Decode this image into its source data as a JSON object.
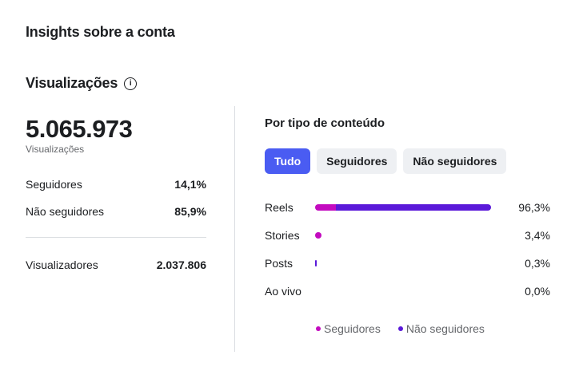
{
  "header": {
    "title": "Insights sobre a conta"
  },
  "section": {
    "title": "Visualizações",
    "info_icon": "info-icon"
  },
  "summary": {
    "total": "5.065.973",
    "total_label": "Visualizações",
    "rows": [
      {
        "label": "Seguidores",
        "value": "14,1%"
      },
      {
        "label": "Não seguidores",
        "value": "85,9%"
      }
    ],
    "viewers": {
      "label": "Visualizadores",
      "value": "2.037.806"
    }
  },
  "content": {
    "title": "Por tipo de conteúdo",
    "tabs": [
      {
        "label": "Tudo",
        "active": true
      },
      {
        "label": "Seguidores",
        "active": false
      },
      {
        "label": "Não seguidores",
        "active": false
      }
    ],
    "rows": [
      {
        "label": "Reels",
        "pct": "96,3%",
        "total": 96.3,
        "followers_share": 12
      },
      {
        "label": "Stories",
        "pct": "3,4%",
        "total": 3.4,
        "followers_share": 100
      },
      {
        "label": "Posts",
        "pct": "0,3%",
        "total": 0.3,
        "followers_share": 0
      },
      {
        "label": "Ao vivo",
        "pct": "0,0%",
        "total": 0.0,
        "followers_share": 0
      }
    ],
    "legend": [
      {
        "label": "Seguidores",
        "color": "#c30bbf"
      },
      {
        "label": "Não seguidores",
        "color": "#5a19d9"
      }
    ]
  },
  "colors": {
    "accent": "#4a5cf2",
    "followers": "#c30bbf",
    "non_followers": "#5a19d9"
  }
}
